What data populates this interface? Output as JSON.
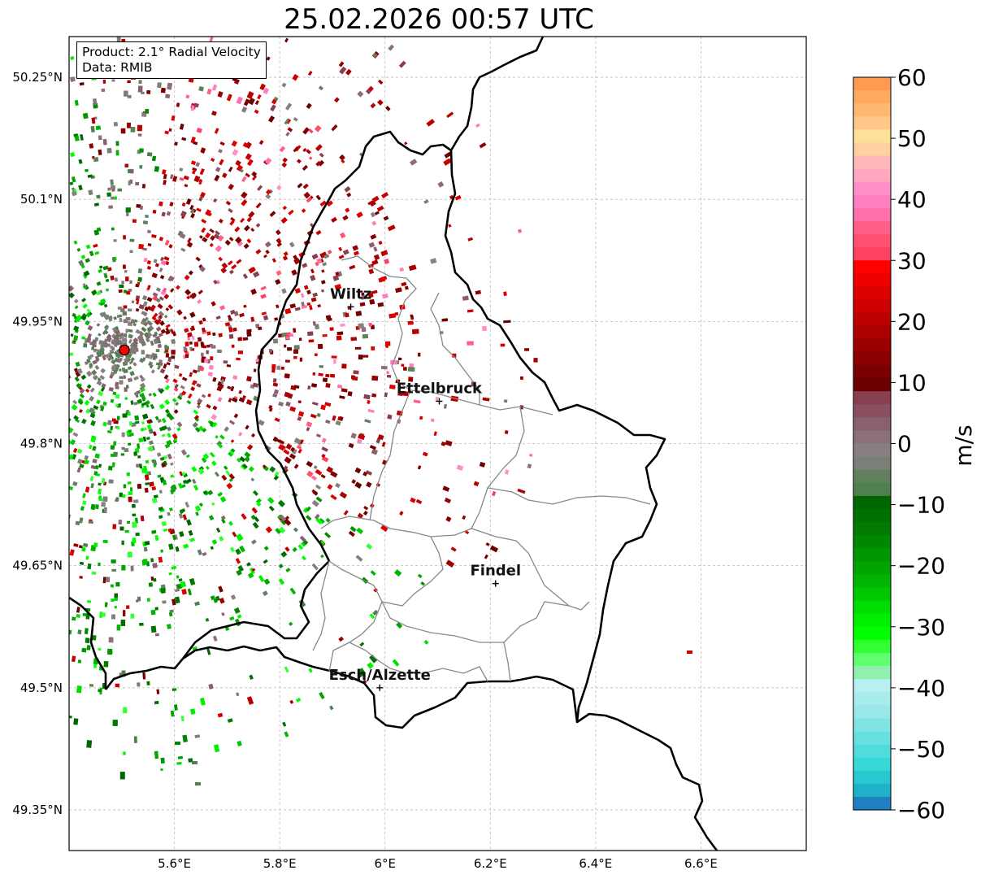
{
  "title": "25.02.2026 00:57 UTC",
  "info": {
    "product": "Product: 2.1° Radial Velocity",
    "data_source": "Data: RMIB"
  },
  "map": {
    "lon_range": [
      5.4,
      6.8
    ],
    "lat_range": [
      49.3,
      50.3
    ],
    "lon_ticks": [
      {
        "value": 5.6,
        "label": "5.6°E"
      },
      {
        "value": 5.8,
        "label": "5.8°E"
      },
      {
        "value": 6.0,
        "label": "6°E"
      },
      {
        "value": 6.2,
        "label": "6.2°E"
      },
      {
        "value": 6.4,
        "label": "6.4°E"
      },
      {
        "value": 6.6,
        "label": "6.6°E"
      }
    ],
    "lat_ticks": [
      {
        "value": 50.25,
        "label": "50.25°N"
      },
      {
        "value": 50.1,
        "label": "50.1°N"
      },
      {
        "value": 49.95,
        "label": "49.95°N"
      },
      {
        "value": 49.8,
        "label": "49.8°N"
      },
      {
        "value": 49.65,
        "label": "49.65°N"
      },
      {
        "value": 49.5,
        "label": "49.5°N"
      },
      {
        "value": 49.35,
        "label": "49.35°N"
      }
    ],
    "radar_site": {
      "lon": 5.505,
      "lat": 49.915,
      "color": "#ff0000"
    },
    "cities": [
      {
        "name": "Wiltz",
        "lon": 5.935,
        "lat": 49.968
      },
      {
        "name": "Ettelbruck",
        "lon": 6.103,
        "lat": 49.852
      },
      {
        "name": "Findel",
        "lon": 6.21,
        "lat": 49.628
      },
      {
        "name": "Esch/Alzette",
        "lon": 5.99,
        "lat": 49.5
      }
    ]
  },
  "colorbar": {
    "label": "m/s",
    "min": -60,
    "max": 60,
    "ticks": [
      {
        "value": 60,
        "label": "60"
      },
      {
        "value": 50,
        "label": "50"
      },
      {
        "value": 40,
        "label": "40"
      },
      {
        "value": 30,
        "label": "30"
      },
      {
        "value": 20,
        "label": "20"
      },
      {
        "value": 10,
        "label": "10"
      },
      {
        "value": 0,
        "label": "0"
      },
      {
        "value": -10,
        "label": "−10"
      },
      {
        "value": -20,
        "label": "−20"
      },
      {
        "value": -30,
        "label": "−30"
      },
      {
        "value": -40,
        "label": "−40"
      },
      {
        "value": -50,
        "label": "−50"
      },
      {
        "value": -60,
        "label": "−60"
      }
    ],
    "colors_top_to_bottom": [
      "#ff9a50",
      "#ffaa60",
      "#ffb870",
      "#ffc888",
      "#ffe098",
      "#ffd0a0",
      "#ffb8b8",
      "#ffa8c0",
      "#ff90c8",
      "#ff80c0",
      "#ff70a8",
      "#ff6088",
      "#ff5070",
      "#ff4060",
      "#ff0000",
      "#ee0000",
      "#dd0000",
      "#cc0000",
      "#bb0000",
      "#aa0000",
      "#9a0000",
      "#8a0000",
      "#7a0000",
      "#6a0000",
      "#884050",
      "#8a5060",
      "#8a6070",
      "#8a7078",
      "#888080",
      "#7a8078",
      "#608060",
      "#508050",
      "#006600",
      "#007000",
      "#007a00",
      "#008800",
      "#009600",
      "#00a500",
      "#00b400",
      "#00c800",
      "#00dd00",
      "#00ee00",
      "#00ff00",
      "#30ff30",
      "#60ff70",
      "#90f0b0",
      "#b8f0f0",
      "#a8ecec",
      "#98e8e8",
      "#80e4e4",
      "#68e0e0",
      "#50dcdc",
      "#38d8d8",
      "#28c8d0",
      "#20b0c8",
      "#1e80c0"
    ]
  },
  "style": {
    "border_country": "#000000",
    "border_canton": "#888888",
    "grid": "#bbbbbb"
  }
}
